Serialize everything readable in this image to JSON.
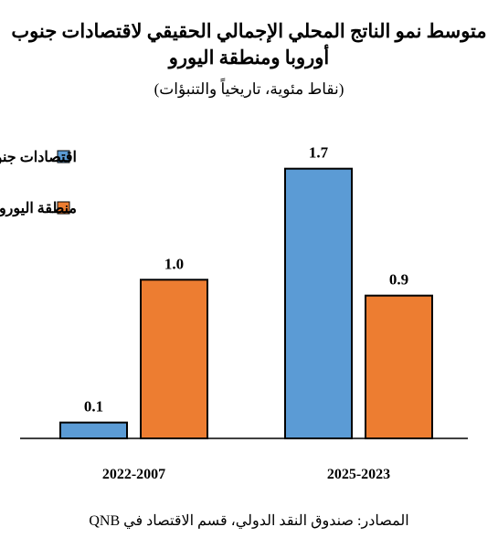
{
  "chart_data": {
    "type": "bar",
    "title": "متوسط نمو الناتج المحلي الإجمالي الحقيقي لاقتصادات جنوب أوروبا ومنطقة اليورو",
    "subtitle": "(نقاط مئوية، تاريخياً والتنبؤات)",
    "categories": [
      "2022-2007",
      "2025-2023"
    ],
    "series": [
      {
        "name": "اقتصادات جنوب أوروبا",
        "color": "#5B9BD5",
        "values": [
          0.1,
          1.7
        ],
        "labels": [
          "0.1",
          "1.7"
        ]
      },
      {
        "name": "منطقة اليورو",
        "color": "#ED7D31",
        "values": [
          1.0,
          0.9
        ],
        "labels": [
          "1.0",
          "0.9"
        ]
      }
    ],
    "ylim": [
      0,
      1.75
    ],
    "grid": false,
    "legend": "top-left",
    "source": "المصادر: صندوق النقد الدولي، قسم الاقتصاد في QNB"
  }
}
